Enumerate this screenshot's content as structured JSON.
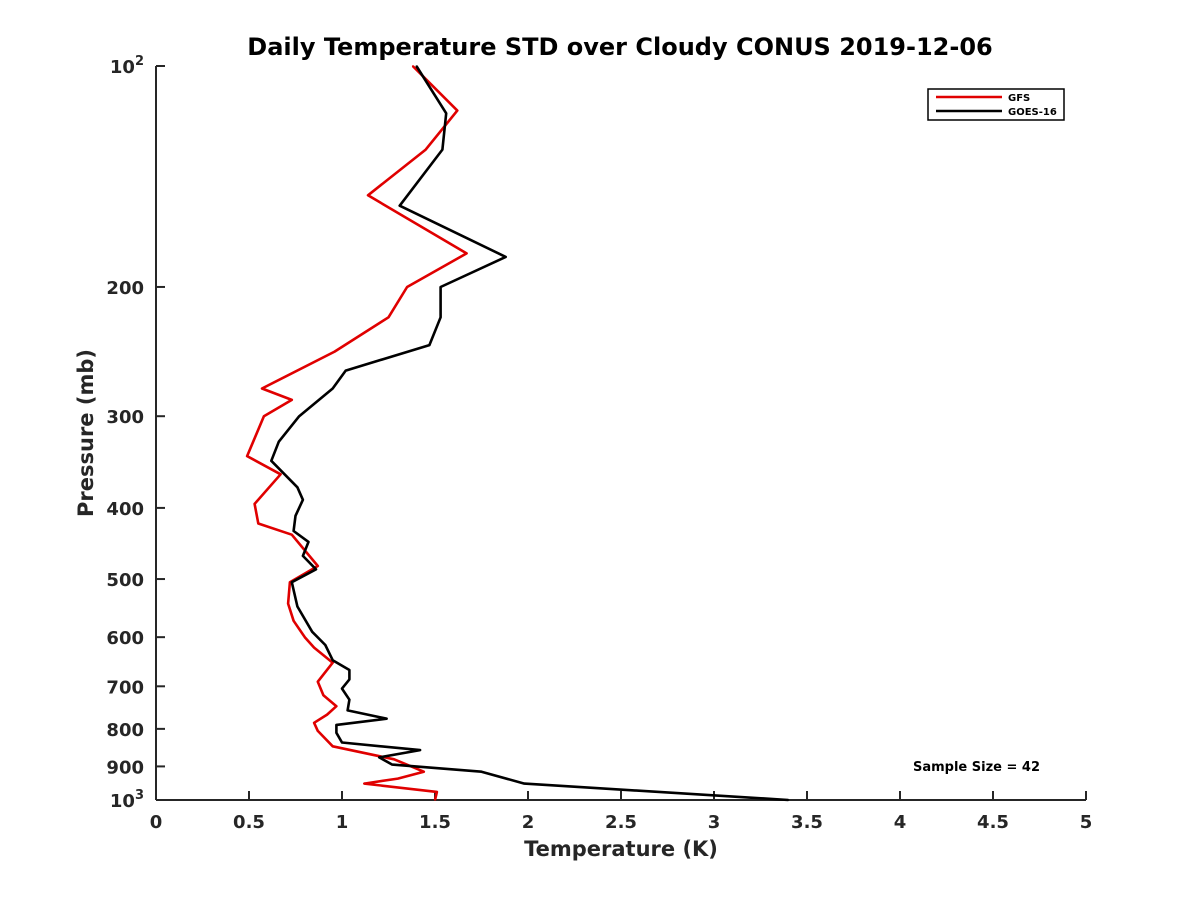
{
  "chart_data": {
    "type": "line",
    "title": "Daily Temperature STD over Cloudy CONUS 2019-12-06",
    "xlabel": "Temperature (K)",
    "ylabel": "Pressure (mb)",
    "xlim": [
      0,
      5
    ],
    "ylim": [
      1000,
      100
    ],
    "y_scale": "log",
    "grid": false,
    "legend_position": "top-right",
    "x_ticks": [
      0,
      0.5,
      1,
      1.5,
      2,
      2.5,
      3,
      3.5,
      4,
      4.5,
      5
    ],
    "x_tick_labels": [
      "0",
      "0.5",
      "1",
      "1.5",
      "2",
      "2.5",
      "3",
      "3.5",
      "4",
      "4.5",
      "5"
    ],
    "y_ticks": [
      {
        "value": 100,
        "base": "10",
        "exp": "2"
      },
      {
        "value": 200,
        "label": "200"
      },
      {
        "value": 300,
        "label": "300"
      },
      {
        "value": 400,
        "label": "400"
      },
      {
        "value": 500,
        "label": "500"
      },
      {
        "value": 600,
        "label": "600"
      },
      {
        "value": 700,
        "label": "700"
      },
      {
        "value": 800,
        "label": "800"
      },
      {
        "value": 900,
        "label": "900"
      },
      {
        "value": 1000,
        "base": "10",
        "exp": "3"
      }
    ],
    "annotation": "Sample Size = 42",
    "series": [
      {
        "name": "GFS",
        "color": "#e00000",
        "points": [
          [
            1.38,
            100
          ],
          [
            1.62,
            115
          ],
          [
            1.45,
            130
          ],
          [
            1.14,
            150
          ],
          [
            1.67,
            180
          ],
          [
            1.35,
            200
          ],
          [
            1.25,
            220
          ],
          [
            0.96,
            245
          ],
          [
            0.57,
            275
          ],
          [
            0.73,
            285
          ],
          [
            0.58,
            300
          ],
          [
            0.49,
            340
          ],
          [
            0.67,
            360
          ],
          [
            0.53,
            395
          ],
          [
            0.55,
            420
          ],
          [
            0.73,
            435
          ],
          [
            0.87,
            480
          ],
          [
            0.72,
            505
          ],
          [
            0.71,
            540
          ],
          [
            0.74,
            570
          ],
          [
            0.8,
            600
          ],
          [
            0.85,
            620
          ],
          [
            0.95,
            650
          ],
          [
            0.87,
            690
          ],
          [
            0.9,
            720
          ],
          [
            0.97,
            745
          ],
          [
            0.92,
            765
          ],
          [
            0.85,
            785
          ],
          [
            0.87,
            805
          ],
          [
            0.95,
            845
          ],
          [
            1.28,
            880
          ],
          [
            1.44,
            915
          ],
          [
            1.3,
            935
          ],
          [
            1.12,
            950
          ],
          [
            1.51,
            975
          ],
          [
            1.5,
            1000
          ]
        ]
      },
      {
        "name": "GOES-16",
        "color": "#000000",
        "points": [
          [
            1.4,
            100
          ],
          [
            1.56,
            116
          ],
          [
            1.54,
            130
          ],
          [
            1.31,
            155
          ],
          [
            1.88,
            182
          ],
          [
            1.53,
            200
          ],
          [
            1.53,
            220
          ],
          [
            1.47,
            240
          ],
          [
            1.02,
            260
          ],
          [
            0.95,
            275
          ],
          [
            0.77,
            300
          ],
          [
            0.66,
            325
          ],
          [
            0.62,
            345
          ],
          [
            0.76,
            375
          ],
          [
            0.79,
            390
          ],
          [
            0.75,
            410
          ],
          [
            0.74,
            430
          ],
          [
            0.82,
            445
          ],
          [
            0.79,
            465
          ],
          [
            0.86,
            485
          ],
          [
            0.73,
            505
          ],
          [
            0.76,
            545
          ],
          [
            0.84,
            590
          ],
          [
            0.91,
            615
          ],
          [
            0.95,
            645
          ],
          [
            1.04,
            665
          ],
          [
            1.04,
            685
          ],
          [
            1.0,
            705
          ],
          [
            1.04,
            730
          ],
          [
            1.03,
            755
          ],
          [
            1.24,
            775
          ],
          [
            0.97,
            790
          ],
          [
            0.97,
            810
          ],
          [
            1.0,
            835
          ],
          [
            1.42,
            855
          ],
          [
            1.2,
            875
          ],
          [
            1.27,
            895
          ],
          [
            1.75,
            915
          ],
          [
            1.98,
            950
          ],
          [
            3.4,
            1000
          ]
        ]
      }
    ]
  }
}
